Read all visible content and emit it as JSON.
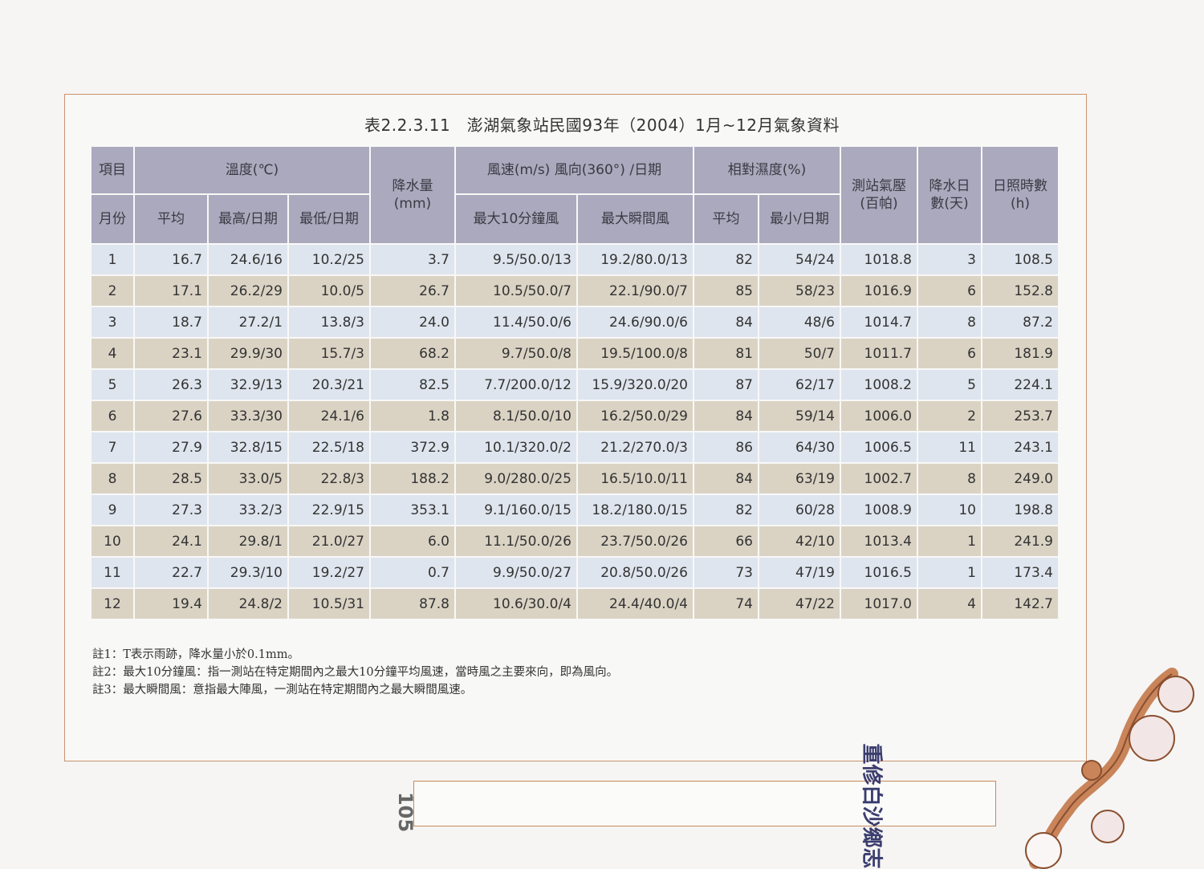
{
  "title": "表2.2.3.11　澎湖氣象站民國93年（2004）1月~12月氣象資料",
  "header": {
    "item_month_top": "項目",
    "item_month_bottom": "月份",
    "temperature": "溫度(℃)",
    "temp_avg": "平均",
    "temp_max": "最高/日期",
    "temp_min": "最低/日期",
    "precip": "降水量(mm)",
    "wind": "風速(m/s) 風向(360°) /日期",
    "wind_10min": "最大10分鐘風",
    "wind_gust": "最大瞬間風",
    "humidity": "相對濕度(%)",
    "hum_avg": "平均",
    "hum_min": "最小/日期",
    "pressure": "測站氣壓(百帕)",
    "rain_days": "降水日數(天)",
    "sunshine": "日照時數(h)"
  },
  "rows": [
    [
      "1",
      "16.7",
      "24.6/16",
      "10.2/25",
      "3.7",
      "9.5/50.0/13",
      "19.2/80.0/13",
      "82",
      "54/24",
      "1018.8",
      "3",
      "108.5"
    ],
    [
      "2",
      "17.1",
      "26.2/29",
      "10.0/5",
      "26.7",
      "10.5/50.0/7",
      "22.1/90.0/7",
      "85",
      "58/23",
      "1016.9",
      "6",
      "152.8"
    ],
    [
      "3",
      "18.7",
      "27.2/1",
      "13.8/3",
      "24.0",
      "11.4/50.0/6",
      "24.6/90.0/6",
      "84",
      "48/6",
      "1014.7",
      "8",
      "87.2"
    ],
    [
      "4",
      "23.1",
      "29.9/30",
      "15.7/3",
      "68.2",
      "9.7/50.0/8",
      "19.5/100.0/8",
      "81",
      "50/7",
      "1011.7",
      "6",
      "181.9"
    ],
    [
      "5",
      "26.3",
      "32.9/13",
      "20.3/21",
      "82.5",
      "7.7/200.0/12",
      "15.9/320.0/20",
      "87",
      "62/17",
      "1008.2",
      "5",
      "224.1"
    ],
    [
      "6",
      "27.6",
      "33.3/30",
      "24.1/6",
      "1.8",
      "8.1/50.0/10",
      "16.2/50.0/29",
      "84",
      "59/14",
      "1006.0",
      "2",
      "253.7"
    ],
    [
      "7",
      "27.9",
      "32.8/15",
      "22.5/18",
      "372.9",
      "10.1/320.0/2",
      "21.2/270.0/3",
      "86",
      "64/30",
      "1006.5",
      "11",
      "243.1"
    ],
    [
      "8",
      "28.5",
      "33.0/5",
      "22.8/3",
      "188.2",
      "9.0/280.0/25",
      "16.5/10.0/11",
      "84",
      "63/19",
      "1002.7",
      "8",
      "249.0"
    ],
    [
      "9",
      "27.3",
      "33.2/3",
      "22.9/15",
      "353.1",
      "9.1/160.0/15",
      "18.2/180.0/15",
      "82",
      "60/28",
      "1008.9",
      "10",
      "198.8"
    ],
    [
      "10",
      "24.1",
      "29.8/1",
      "21.0/27",
      "6.0",
      "11.1/50.0/26",
      "23.7/50.0/26",
      "66",
      "42/10",
      "1013.4",
      "1",
      "241.9"
    ],
    [
      "11",
      "22.7",
      "29.3/10",
      "19.2/27",
      "0.7",
      "9.9/50.0/27",
      "20.8/50.0/26",
      "73",
      "47/19",
      "1016.5",
      "1",
      "173.4"
    ],
    [
      "12",
      "19.4",
      "24.8/2",
      "10.5/31",
      "87.8",
      "10.6/30.0/4",
      "24.4/40.0/4",
      "74",
      "47/22",
      "1017.0",
      "4",
      "142.7"
    ]
  ],
  "notes": [
    "註1：T表示雨跡，降水量小於0.1mm。",
    "註2：最大10分鐘風：指一測站在特定期間內之最大10分鐘平均風速，當時風之主要來向，即為風向。",
    "註3：最大瞬間風：意指最大陣風，一測站在特定期間內之最大瞬間風速。"
  ],
  "footer": {
    "book_title": "重修白沙鄉志",
    "page_number": "105"
  },
  "colors": {
    "header": "#aaa9bd",
    "row_odd": "#dfe5ee",
    "row_even": "#dad3c4",
    "frame": "#c9936f",
    "ornament": "#c9845a"
  }
}
